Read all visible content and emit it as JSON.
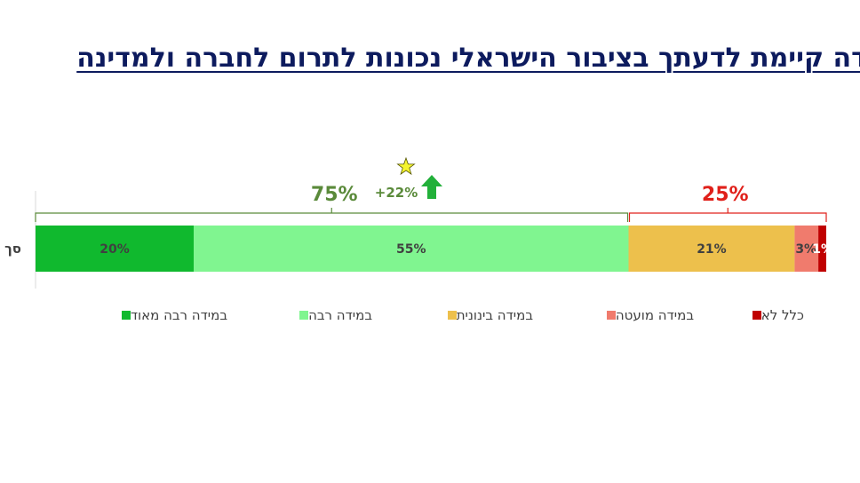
{
  "title": "באיזו מידה קיימת לדעתך בציבור הישראלי נכונות לתרום לחברה ולמדינה",
  "chart_data": {
    "type": "bar",
    "orientation": "horizontal-stacked-100",
    "category_label_partial": "סך",
    "series": [
      {
        "name": "במידה רבה מאוד",
        "value": 20,
        "label": "20%",
        "color": "#10b92e"
      },
      {
        "name": "במידה רבה",
        "value": 55,
        "label": "55%",
        "color": "#80f590"
      },
      {
        "name": "במידה בינונית",
        "value": 21,
        "label": "21%",
        "color": "#edc04c"
      },
      {
        "name": "במידה מועטה",
        "value": 3,
        "label": "3%",
        "color": "#f07b6d"
      },
      {
        "name": "כלל לא",
        "value": 1,
        "label": "1%",
        "color": "#c00000"
      }
    ],
    "brackets": [
      {
        "label": "75%",
        "from": 0,
        "to": 75,
        "color": "#5a8a3a"
      },
      {
        "label": "25%",
        "from": 75,
        "to": 100,
        "color": "#e0201a"
      }
    ],
    "annotation": {
      "text": "+22%",
      "icon": "star-icon",
      "arrow": "up-arrow-icon",
      "arrow_color": "#22b03a",
      "star_color": "#f5f530"
    }
  }
}
